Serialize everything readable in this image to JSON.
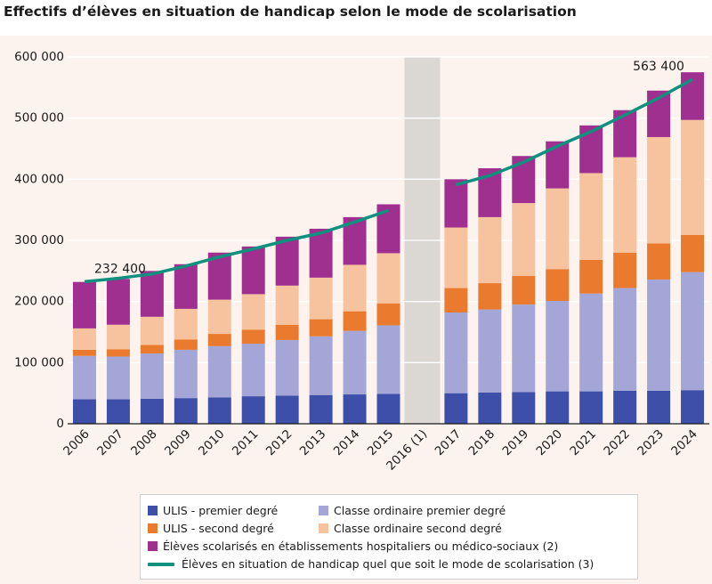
{
  "title": "Effectifs d’élèves en situation de handicap selon le mode de scolarisation",
  "colors": {
    "background": "#fdf3ee",
    "ulis_premier": "#3d4fa8",
    "classe_premier": "#a3a6d6",
    "ulis_second": "#ea7a2d",
    "classe_second": "#f6c39e",
    "etablissements": "#a0308f",
    "total_line": "#10917f",
    "gap_band": "#dbd7d3",
    "grid": "#ffffff"
  },
  "chart_data": {
    "type": "bar",
    "stacked": true,
    "categories": [
      "2006",
      "2007",
      "2008",
      "2009",
      "2010",
      "2011",
      "2012",
      "2013",
      "2014",
      "2015",
      "2016 (1)",
      "2017",
      "2018",
      "2019",
      "2020",
      "2021",
      "2022",
      "2023",
      "2024"
    ],
    "ylim": [
      0,
      600000
    ],
    "yticks": [
      "0",
      "100 000",
      "200 000",
      "300 000",
      "400 000",
      "500 000",
      "600 000"
    ],
    "series": [
      {
        "name": "ULIS - premier degré",
        "key": "ulis_premier",
        "values": [
          40000,
          40000,
          41000,
          42000,
          43000,
          45000,
          46000,
          47000,
          48000,
          49000,
          null,
          50000,
          51000,
          52000,
          53000,
          53000,
          54000,
          54000,
          55000
        ]
      },
      {
        "name": "Classe ordinaire premier degré",
        "key": "classe_premier",
        "values": [
          71000,
          70000,
          74000,
          79000,
          84000,
          86000,
          91000,
          96000,
          104000,
          112000,
          null,
          132000,
          136000,
          143000,
          148000,
          160000,
          168000,
          182000,
          193000
        ]
      },
      {
        "name": "ULIS - second degré",
        "key": "ulis_second",
        "values": [
          10000,
          12000,
          14000,
          17000,
          20000,
          23000,
          25000,
          28000,
          32000,
          36000,
          null,
          40000,
          43000,
          47000,
          52000,
          55000,
          58000,
          59000,
          61000
        ]
      },
      {
        "name": "Classe ordinaire second degré",
        "key": "classe_second",
        "values": [
          35000,
          40000,
          46000,
          50000,
          56000,
          58000,
          64000,
          68000,
          76000,
          82000,
          null,
          99000,
          108000,
          119000,
          132000,
          142000,
          156000,
          174000,
          188000
        ]
      },
      {
        "name": "Élèves scolarisés en établissements hospitaliers ou médico-sociaux (2)",
        "key": "etablissements",
        "values": [
          76000,
          75000,
          75000,
          73000,
          77000,
          78000,
          80000,
          80000,
          78000,
          80000,
          null,
          79000,
          80000,
          77000,
          77000,
          78000,
          77000,
          76000,
          78000
        ]
      }
    ],
    "line": {
      "name": "Élèves en situation de handicap quel que soit le mode de scolarisation (3)",
      "values": [
        232400,
        238000,
        245000,
        258000,
        273000,
        286000,
        300000,
        312000,
        330000,
        349000,
        null,
        391000,
        406000,
        428000,
        454000,
        478000,
        505000,
        533000,
        563400
      ]
    },
    "annotations": [
      {
        "category": "2006",
        "text": "232 400"
      },
      {
        "category": "2024",
        "text": "563 400"
      }
    ],
    "gap_category": "2016 (1)",
    "grid": true
  },
  "legend": {
    "ulis_premier": "ULIS - premier degré",
    "classe_premier": "Classe ordinaire premier degré",
    "ulis_second": "ULIS - second degré",
    "classe_second": "Classe ordinaire second degré",
    "etablissements": "Élèves scolarisés en établissements hospitaliers ou médico-sociaux (2)",
    "total_line": "Élèves en situation de handicap quel que soit le mode de scolarisation (3)"
  }
}
